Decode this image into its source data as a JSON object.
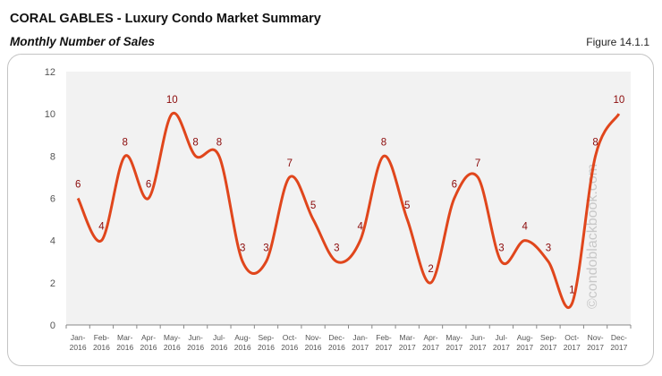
{
  "header": {
    "title": "CORAL GABLES - Luxury Condo Market Summary",
    "subtitle": "Monthly Number of Sales",
    "figure": "Figure 14.1.1"
  },
  "watermark": "©condoblackbook.com",
  "chart_data": {
    "type": "line",
    "smooth": true,
    "categories": [
      "Jan-2016",
      "Feb-2016",
      "Mar-2016",
      "Apr-2016",
      "May-2016",
      "Jun-2016",
      "Jul-2016",
      "Aug-2016",
      "Sep-2016",
      "Oct-2016",
      "Nov-2016",
      "Dec-2016",
      "Jan-2017",
      "Feb-2017",
      "Mar-2017",
      "Apr-2017",
      "May-2017",
      "Jun-2017",
      "Jul-2017",
      "Aug-2017",
      "Sep-2017",
      "Oct-2017",
      "Nov-2017",
      "Dec-2017"
    ],
    "values": [
      6,
      4,
      8,
      6,
      10,
      8,
      8,
      3,
      3,
      7,
      5,
      3,
      4,
      8,
      5,
      2,
      6,
      7,
      3,
      4,
      3,
      1,
      8,
      10
    ],
    "ylim": [
      0,
      12
    ],
    "yticks": [
      0,
      2,
      4,
      6,
      8,
      10,
      12
    ],
    "grid": false,
    "data_labels": true,
    "colors": {
      "line": "#e0461c",
      "labels": "#8b0a0a",
      "plot_bg": "#f2f2f2"
    }
  }
}
